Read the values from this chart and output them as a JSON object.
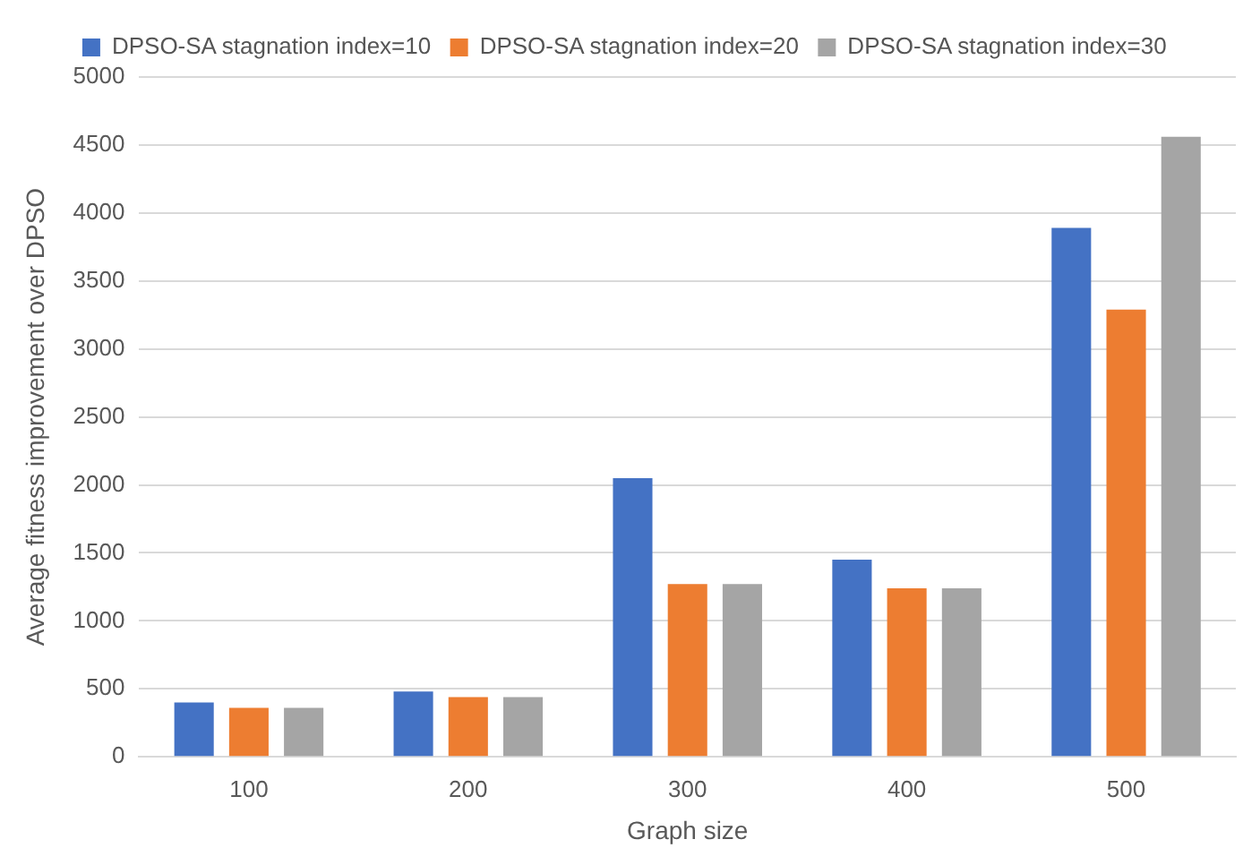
{
  "chart_data": {
    "type": "bar",
    "xlabel": "Graph size",
    "ylabel": "Average fitness improvement over DPSO",
    "categories": [
      "100",
      "200",
      "300",
      "400",
      "500"
    ],
    "series": [
      {
        "name": "DPSO-SA stagnation index=10",
        "color": "#4472c4",
        "values": [
          400,
          480,
          2050,
          1450,
          3890
        ]
      },
      {
        "name": "DPSO-SA stagnation index=20",
        "color": "#ed7d31",
        "values": [
          360,
          440,
          1270,
          1240,
          3290
        ]
      },
      {
        "name": "DPSO-SA stagnation index=30",
        "color": "#a5a5a5",
        "values": [
          360,
          440,
          1270,
          1240,
          4560
        ]
      }
    ],
    "ylim": [
      0,
      5000
    ],
    "yticks": [
      0,
      500,
      1000,
      1500,
      2000,
      2500,
      3000,
      3500,
      4000,
      4500,
      5000
    ],
    "grid": "y",
    "legend": "top"
  }
}
